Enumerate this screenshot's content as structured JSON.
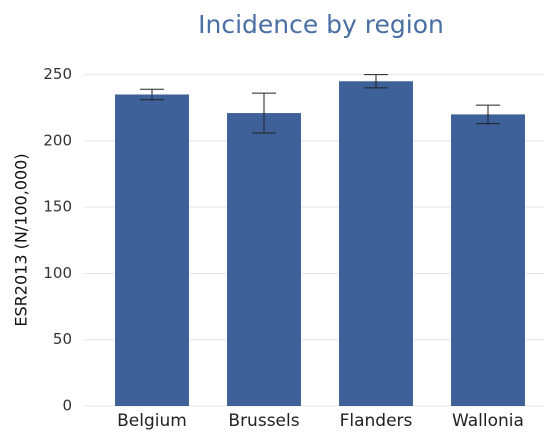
{
  "chart_data": {
    "type": "bar",
    "title": "Incidence by region",
    "y_label": "ESR2013 (N/100,000)",
    "categories": [
      "Belgium",
      "Brussels",
      "Flanders",
      "Wallonia"
    ],
    "values": [
      235,
      221,
      245,
      220
    ],
    "errors": [
      4,
      15,
      5,
      7
    ],
    "color": "#3f6199",
    "ylim": [
      0,
      255
    ],
    "yticks": [
      0,
      50,
      100,
      150,
      200,
      250
    ],
    "grid": true
  }
}
